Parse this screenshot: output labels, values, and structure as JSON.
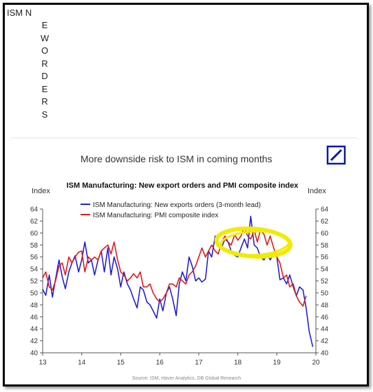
{
  "post": {
    "heading_first": "ISM N",
    "heading_letters": [
      "E",
      "W",
      "O",
      "R",
      "D",
      "E",
      "R",
      "S"
    ]
  },
  "figure": {
    "headline": "More downside risk to ISM in coming months",
    "brand_color": "#0018a8",
    "source": "Source: ISM, Haver Analytics, DB Global Research"
  },
  "chart_data": {
    "type": "line",
    "title": "ISM Manufacturing: New export orders and PMI composite index",
    "ylabel_left": "Index",
    "ylabel_right": "Index",
    "ylim": [
      40,
      64
    ],
    "yticks": [
      40,
      42,
      44,
      46,
      48,
      50,
      52,
      54,
      56,
      58,
      60,
      62,
      64
    ],
    "xlim": [
      13,
      20
    ],
    "xticks": [
      13,
      14,
      15,
      16,
      17,
      18,
      19,
      20
    ],
    "legend_position": "top-left",
    "grid": false,
    "series": [
      {
        "name": "ISM Manufacturing: New exports orders (3-month lead)",
        "color": "#1f1fd6",
        "x": [
          13.0,
          13.08,
          13.17,
          13.25,
          13.33,
          13.42,
          13.5,
          13.58,
          13.67,
          13.75,
          13.83,
          13.92,
          14.0,
          14.08,
          14.17,
          14.25,
          14.33,
          14.42,
          14.5,
          14.58,
          14.67,
          14.75,
          14.83,
          14.92,
          15.0,
          15.08,
          15.17,
          15.25,
          15.33,
          15.42,
          15.5,
          15.58,
          15.67,
          15.75,
          15.83,
          15.92,
          16.0,
          16.08,
          16.17,
          16.25,
          16.33,
          16.42,
          16.5,
          16.58,
          16.67,
          16.75,
          16.83,
          16.92,
          17.0,
          17.08,
          17.17,
          17.25,
          17.33,
          17.42,
          17.5,
          17.58,
          17.67,
          17.75,
          17.83,
          17.92,
          18.0,
          18.08,
          18.17,
          18.25,
          18.33,
          18.42,
          18.5,
          18.58,
          18.67,
          18.75,
          18.83,
          18.92,
          19.0,
          19.08,
          19.17,
          19.25,
          19.33,
          19.42,
          19.5,
          19.58,
          19.67,
          19.75,
          19.83,
          19.92
        ],
        "values": [
          50.6,
          49.6,
          53.0,
          49.3,
          52.3,
          55.5,
          52.7,
          50.7,
          53.5,
          55.0,
          56.2,
          53.5,
          55.5,
          58.5,
          55.0,
          55.5,
          53.0,
          55.5,
          57.0,
          53.5,
          57.5,
          53.0,
          56.0,
          54.0,
          51.0,
          53.5,
          51.5,
          50.5,
          49.0,
          47.5,
          51.0,
          50.5,
          48.5,
          48.0,
          47.0,
          45.8,
          49.0,
          47.0,
          50.0,
          51.0,
          49.0,
          46.2,
          51.5,
          53.5,
          52.0,
          56.0,
          54.5,
          52.0,
          52.5,
          51.8,
          52.3,
          57.0,
          56.0,
          59.5,
          58.0,
          57.5,
          59.0,
          58.5,
          57.0,
          56.3,
          56.0,
          57.5,
          59.0,
          57.5,
          62.8,
          58.0,
          57.5,
          56.0,
          55.5,
          56.5,
          55.5,
          56.5,
          56.0,
          52.2,
          52.5,
          51.5,
          53.0,
          51.0,
          49.5,
          51.0,
          50.5,
          47.5,
          43.5,
          41.0
        ]
      },
      {
        "name": "ISM Manufacturing: PMI composite index",
        "color": "#e11818",
        "x": [
          13.0,
          13.08,
          13.17,
          13.25,
          13.33,
          13.42,
          13.5,
          13.58,
          13.67,
          13.75,
          13.83,
          13.92,
          14.0,
          14.08,
          14.17,
          14.25,
          14.33,
          14.42,
          14.5,
          14.58,
          14.67,
          14.75,
          14.83,
          14.92,
          15.0,
          15.08,
          15.17,
          15.25,
          15.33,
          15.42,
          15.5,
          15.58,
          15.67,
          15.75,
          15.83,
          15.92,
          16.0,
          16.08,
          16.17,
          16.25,
          16.33,
          16.42,
          16.5,
          16.58,
          16.67,
          16.75,
          16.83,
          16.92,
          17.0,
          17.08,
          17.17,
          17.25,
          17.33,
          17.42,
          17.5,
          17.58,
          17.67,
          17.75,
          17.83,
          17.92,
          18.0,
          18.08,
          18.17,
          18.25,
          18.33,
          18.42,
          18.5,
          18.58,
          18.67,
          18.75,
          18.83,
          18.92,
          19.0,
          19.08,
          19.17,
          19.25,
          19.33,
          19.42,
          19.5,
          19.58,
          19.67,
          19.75
        ],
        "values": [
          52.5,
          53.5,
          51.0,
          50.5,
          52.0,
          54.5,
          55.0,
          53.0,
          56.0,
          55.0,
          56.0,
          56.8,
          57.0,
          53.5,
          56.0,
          55.5,
          56.0,
          55.5,
          57.0,
          57.5,
          58.0,
          56.5,
          58.5,
          55.5,
          53.5,
          53.0,
          52.0,
          52.5,
          53.2,
          52.5,
          53.5,
          51.0,
          51.0,
          51.5,
          50.0,
          49.0,
          48.5,
          49.0,
          50.0,
          51.5,
          51.5,
          51.0,
          52.5,
          52.0,
          51.5,
          53.0,
          53.5,
          54.5,
          56.0,
          57.5,
          56.0,
          57.0,
          58.0,
          57.0,
          56.5,
          58.5,
          59.5,
          58.5,
          58.0,
          59.7,
          58.8,
          59.5,
          61.0,
          59.5,
          59.0,
          60.5,
          58.5,
          60.5,
          59.8,
          58.0,
          59.5,
          57.5,
          56.0,
          55.0,
          52.5,
          53.0,
          51.0,
          51.5,
          49.5,
          48.5,
          47.8,
          49.5
        ]
      }
    ],
    "annotation": {
      "type": "ellipse",
      "color": "#f2ea00",
      "center_x": 18.4,
      "center_y": 58.4,
      "rx": 0.95,
      "ry": 2.3
    }
  }
}
